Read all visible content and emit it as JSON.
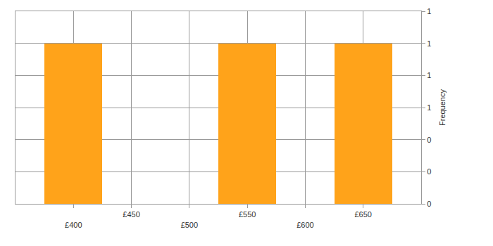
{
  "chart_data": {
    "type": "histogram",
    "bins": [
      375,
      425,
      475,
      525,
      575,
      625,
      675
    ],
    "values": [
      1,
      0,
      0,
      1,
      0,
      1
    ],
    "color": "#ffa31a",
    "y_label": "Frequency",
    "xlim": [
      350,
      700
    ],
    "xticks": [
      {
        "value": 400,
        "label": "£400"
      },
      {
        "value": 450,
        "label": "£450"
      },
      {
        "value": 500,
        "label": "£500"
      },
      {
        "value": 550,
        "label": "£550"
      },
      {
        "value": 600,
        "label": "£600"
      },
      {
        "value": 650,
        "label": "£650"
      }
    ],
    "ylim": [
      0,
      1.2
    ],
    "yticks": [
      0,
      {
        "value": 0.2,
        "label": "0"
      },
      {
        "value": 0.4,
        "label": "0"
      },
      {
        "value": 0.6,
        "label": "1"
      },
      {
        "value": 0.8,
        "label": "1"
      },
      1,
      {
        "value": 1.2,
        "label": "1"
      }
    ],
    "grid": true
  }
}
